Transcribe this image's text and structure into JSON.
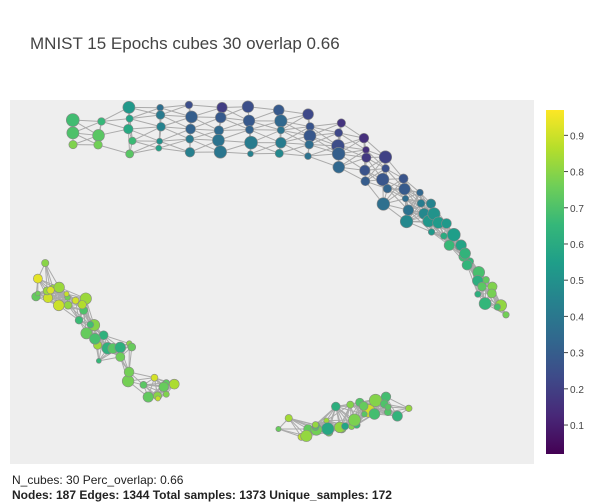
{
  "title": "MNIST 15 Epochs cubes 30 overlap 0.66",
  "footer": {
    "line1": "N_cubes: 30 Perc_overlap: 0.66",
    "line2": "Nodes: 187 Edges: 1344 Total samples: 1373 Unique_samples: 172"
  },
  "colorbar": {
    "colorscale": "Viridis",
    "range": [
      0.02,
      0.97
    ],
    "tick_labels": [
      "0.1",
      "0.2",
      "0.3",
      "0.4",
      "0.5",
      "0.6",
      "0.7",
      "0.8",
      "0.9"
    ],
    "tick_values": [
      0.1,
      0.2,
      0.3,
      0.4,
      0.5,
      0.6,
      0.7,
      0.8,
      0.9
    ]
  },
  "colors": {
    "background": "#eeeeee",
    "edge": "#aaaaaa",
    "node_outline": "#888888"
  },
  "chart_data": {
    "type": "scatter",
    "title": "MNIST 15 Epochs cubes 30 overlap 0.66",
    "xlabel": "",
    "ylabel": "",
    "grid": false,
    "colorscale": "Viridis",
    "summary": {
      "n_cubes": 30,
      "perc_overlap": 0.66,
      "nodes": 187,
      "edges": 1344,
      "total_samples": 1373,
      "unique_samples": 172
    },
    "components": [
      {
        "shape": "arc",
        "value_range": [
          0.2,
          0.75
        ]
      },
      {
        "shape": "blob",
        "value_range": [
          0.7,
          0.95
        ]
      },
      {
        "shape": "blob",
        "value_range": [
          0.6,
          0.9
        ]
      }
    ]
  }
}
